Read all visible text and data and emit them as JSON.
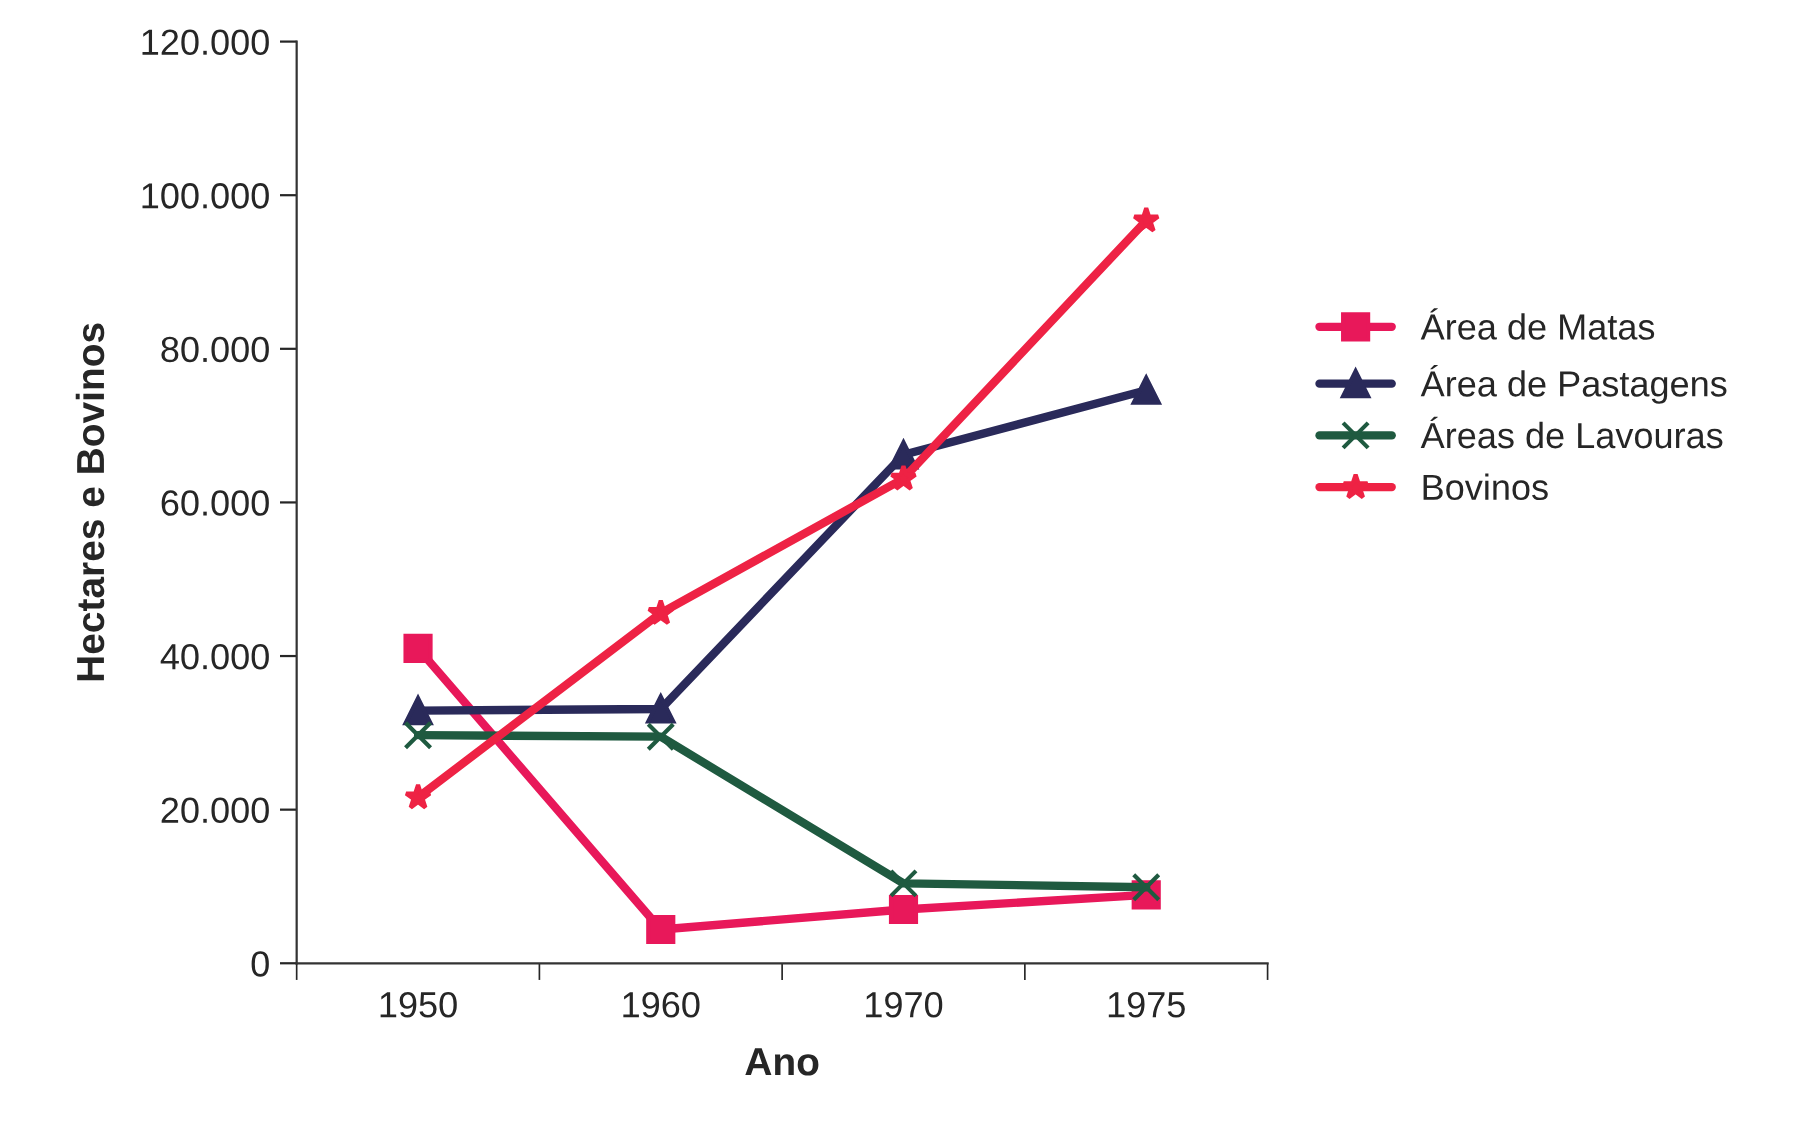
{
  "chart_data": {
    "type": "line",
    "xlabel": "Ano",
    "ylabel": "Hectares e Bovinos",
    "categories": [
      "1950",
      "1960",
      "1970",
      "1975"
    ],
    "series": [
      {
        "name": "Área de Matas",
        "color": "#e8185a",
        "marker": "square",
        "values": [
          41000,
          4400,
          7000,
          8900
        ]
      },
      {
        "name": "Área de Pastagens",
        "color": "#2a2a5a",
        "marker": "triangle",
        "values": [
          32900,
          33100,
          66200,
          74600
        ]
      },
      {
        "name": "Áreas de Lavouras",
        "color": "#1f5a40",
        "marker": "cross",
        "values": [
          29700,
          29500,
          10400,
          9900
        ]
      },
      {
        "name": "Bovinos",
        "color": "#ee2244",
        "marker": "star",
        "values": [
          21600,
          45600,
          63100,
          96700
        ]
      }
    ],
    "ylim": [
      0,
      120000
    ],
    "yticks": [
      0,
      {
        "value": 20000,
        "label": "20.000"
      },
      {
        "value": 40000,
        "label": "40.000"
      },
      {
        "value": 60000,
        "label": "60.000"
      },
      {
        "value": 80000,
        "label": "80.000"
      },
      {
        "value": 100000,
        "label": "100.000"
      },
      {
        "value": 120000,
        "label": "120.000"
      }
    ],
    "grid": false,
    "legend": "right",
    "line_style": "solid"
  }
}
